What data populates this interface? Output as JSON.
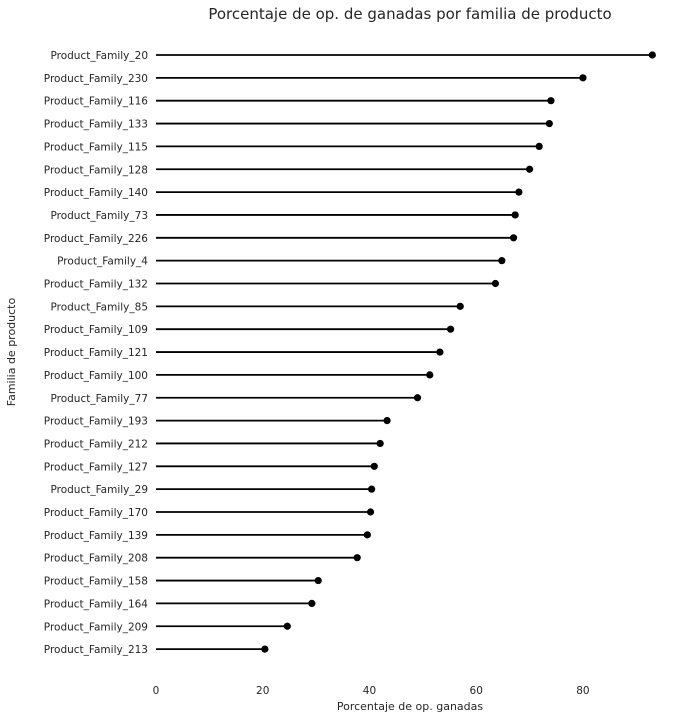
{
  "chart_data": {
    "type": "lollipop",
    "title": "Porcentaje de op. de ganadas por familia de producto",
    "xlabel": "Porcentaje de op. ganadas",
    "ylabel": "Familia de producto",
    "xlim": [
      0,
      95
    ],
    "xticks": [
      0,
      20,
      40,
      60,
      80
    ],
    "grid": false,
    "colors": {
      "stem": "#000000",
      "marker": "#000000",
      "text": "#262626"
    },
    "categories": [
      "Product_Family_20",
      "Product_Family_230",
      "Product_Family_116",
      "Product_Family_133",
      "Product_Family_115",
      "Product_Family_128",
      "Product_Family_140",
      "Product_Family_73",
      "Product_Family_226",
      "Product_Family_4",
      "Product_Family_132",
      "Product_Family_85",
      "Product_Family_109",
      "Product_Family_121",
      "Product_Family_100",
      "Product_Family_77",
      "Product_Family_193",
      "Product_Family_212",
      "Product_Family_127",
      "Product_Family_29",
      "Product_Family_170",
      "Product_Family_139",
      "Product_Family_208",
      "Product_Family_158",
      "Product_Family_164",
      "Product_Family_209",
      "Product_Family_213"
    ],
    "values": [
      93,
      80,
      74,
      73.7,
      71.8,
      70,
      68,
      67.3,
      67,
      64.8,
      63.6,
      57,
      55.2,
      53.2,
      51.3,
      49,
      43.3,
      42,
      40.9,
      40.4,
      40.2,
      39.6,
      37.7,
      30.4,
      29.2,
      24.6,
      20.4
    ]
  }
}
